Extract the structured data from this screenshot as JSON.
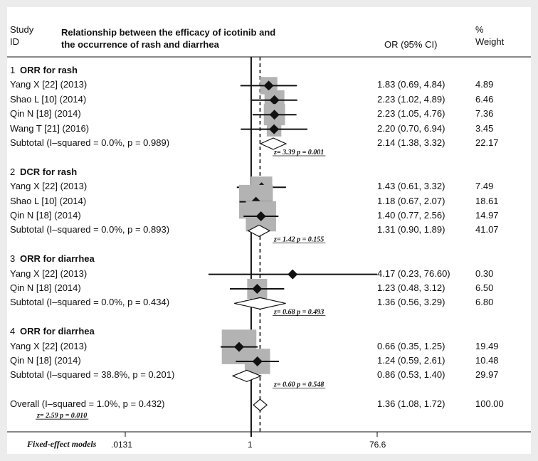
{
  "header": {
    "col_study_line1": "Study",
    "col_study_line2": "ID",
    "title_line1": "Relationship between the efficacy of icotinib and",
    "title_line2": "the occurrence of rash and diarrhea",
    "col_or": "OR (95% CI)",
    "col_weight_line1": "%",
    "col_weight_line2": "Weight"
  },
  "footer": {
    "model_label": "Fixed-effect models",
    "ticks": [
      ".0131",
      "1",
      "76.6"
    ]
  },
  "chart_data": {
    "type": "forest",
    "scale": "log",
    "xlim": [
      0.0131,
      76.6
    ],
    "null_value": 1,
    "overall_estimate": 1.36,
    "groups": [
      {
        "number": "1",
        "name": "ORR for rash",
        "studies": [
          {
            "label": "Yang X [22] (2013)",
            "or": 1.83,
            "lo": 0.69,
            "hi": 4.84,
            "ci_text": "1.83 (0.69, 4.84)",
            "weight": "4.89"
          },
          {
            "label": "Shao L [10] (2014)",
            "or": 2.23,
            "lo": 1.02,
            "hi": 4.89,
            "ci_text": "2.23 (1.02, 4.89)",
            "weight": "6.46"
          },
          {
            "label": "Qin N [18] (2014)",
            "or": 2.23,
            "lo": 1.05,
            "hi": 4.76,
            "ci_text": "2.23 (1.05, 4.76)",
            "weight": "7.36"
          },
          {
            "label": "Wang T [21] (2016)",
            "or": 2.2,
            "lo": 0.7,
            "hi": 6.94,
            "ci_text": "2.20 (0.70, 6.94)",
            "weight": "3.45"
          }
        ],
        "subtotal": {
          "label": "Subtotal  (I–squared = 0.0%, p = 0.989)",
          "or": 2.14,
          "lo": 1.38,
          "hi": 3.32,
          "ci_text": "2.14 (1.38, 3.32)",
          "weight": "22.17",
          "z_text": "z=  3.39    p = 0.001"
        }
      },
      {
        "number": "2",
        "name": "DCR for rash",
        "studies": [
          {
            "label": "Yang X [22] (2013)",
            "or": 1.43,
            "lo": 0.61,
            "hi": 3.32,
            "ci_text": "1.43 (0.61, 3.32)",
            "weight": "7.49"
          },
          {
            "label": "Shao L [10] (2014)",
            "or": 1.18,
            "lo": 0.67,
            "hi": 2.07,
            "ci_text": "1.18 (0.67, 2.07)",
            "weight": "18.61"
          },
          {
            "label": "Qin N [18] (2014)",
            "or": 1.4,
            "lo": 0.77,
            "hi": 2.56,
            "ci_text": "1.40 (0.77, 2.56)",
            "weight": "14.97"
          }
        ],
        "subtotal": {
          "label": "Subtotal  (I–squared = 0.0%, p = 0.893)",
          "or": 1.31,
          "lo": 0.9,
          "hi": 1.89,
          "ci_text": "1.31 (0.90, 1.89)",
          "weight": "41.07",
          "z_text": "z=  1.42    p = 0.155"
        }
      },
      {
        "number": "3",
        "name": "ORR for diarrhea",
        "studies": [
          {
            "label": "Yang X [22] (2013)",
            "or": 4.17,
            "lo": 0.23,
            "hi": 76.6,
            "ci_text": "4.17 (0.23, 76.60)",
            "weight": "0.30"
          },
          {
            "label": "Qin N [18] (2014)",
            "or": 1.23,
            "lo": 0.48,
            "hi": 3.12,
            "ci_text": "1.23 (0.48, 3.12)",
            "weight": "6.50"
          }
        ],
        "subtotal": {
          "label": "Subtotal  (I–squared = 0.0%, p = 0.434)",
          "or": 1.36,
          "lo": 0.56,
          "hi": 3.29,
          "ci_text": "1.36 (0.56, 3.29)",
          "weight": "6.80",
          "z_text": "z=  0.68    p = 0.493"
        }
      },
      {
        "number": "4",
        "name": "ORR for diarrhea",
        "studies": [
          {
            "label": "Yang X [22] (2013)",
            "or": 0.66,
            "lo": 0.35,
            "hi": 1.25,
            "ci_text": "0.66 (0.35, 1.25)",
            "weight": "19.49"
          },
          {
            "label": "Qin N [18] (2014)",
            "or": 1.24,
            "lo": 0.59,
            "hi": 2.61,
            "ci_text": "1.24 (0.59, 2.61)",
            "weight": "10.48"
          }
        ],
        "subtotal": {
          "label": "Subtotal  (I–squared = 38.8%, p = 0.201)",
          "or": 0.86,
          "lo": 0.53,
          "hi": 1.4,
          "ci_text": "0.86 (0.53, 1.40)",
          "weight": "29.97",
          "z_text": "z=  0.60    p = 0.548"
        }
      }
    ],
    "overall": {
      "label": "Overall  (I–squared = 1.0%, p = 0.432)",
      "or": 1.36,
      "lo": 1.08,
      "hi": 1.72,
      "ci_text": "1.36 (1.08, 1.72)",
      "weight": "100.00",
      "z_text": "z=  2.59    p = 0.010"
    },
    "colors": {
      "box": "#b3b3b3",
      "marker": "#111111",
      "line": "#111111"
    }
  }
}
